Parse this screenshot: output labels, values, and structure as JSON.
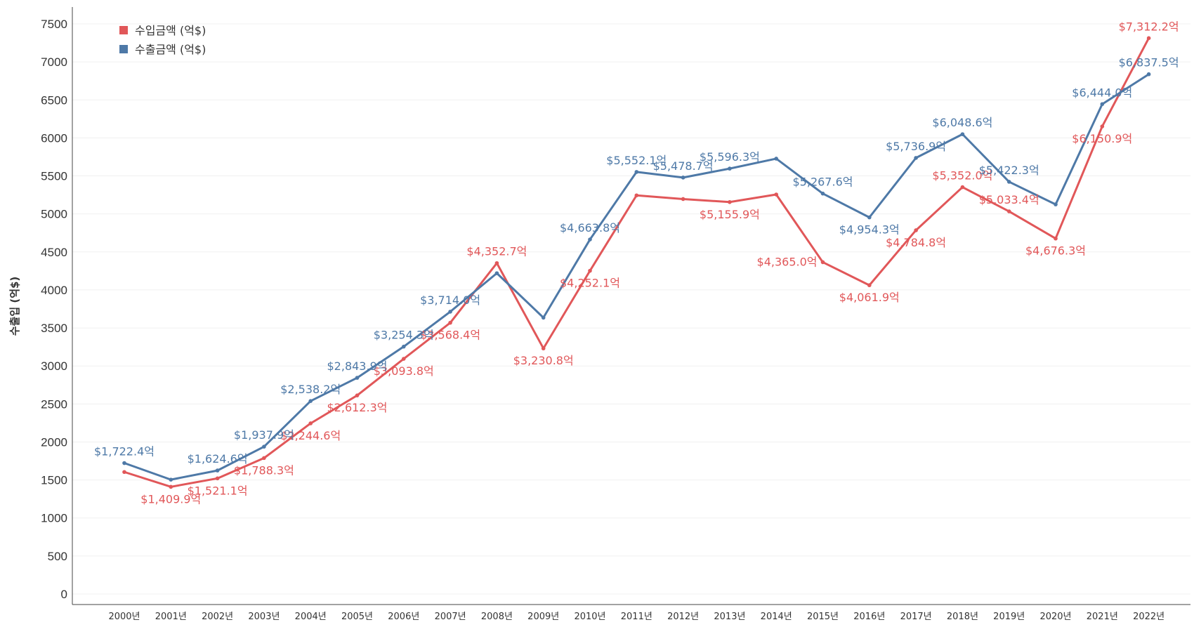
{
  "chart_data": {
    "type": "line",
    "title": "",
    "xlabel": "",
    "ylabel": "수출입 (억$)",
    "ylim": [
      0,
      7500
    ],
    "yticks": [
      0,
      500,
      1000,
      1500,
      2000,
      2500,
      3000,
      3500,
      4000,
      4500,
      5000,
      5500,
      6000,
      6500,
      7000,
      7500
    ],
    "grid": "horizontal",
    "legend_position": "top-left",
    "categories": [
      "2000년",
      "2001년",
      "2002년",
      "2003년",
      "2004년",
      "2005년",
      "2006년",
      "2007년",
      "2008년",
      "2009년",
      "2010년",
      "2011년",
      "2012년",
      "2013년",
      "2014년",
      "2015년",
      "2016년",
      "2017년",
      "2018년",
      "2019년",
      "2020년",
      "2021년",
      "2022년"
    ],
    "series": [
      {
        "name": "수입금액 (억$)",
        "color": "#e15759",
        "values": [
          1604.8,
          1409.9,
          1521.1,
          1788.3,
          2244.6,
          2612.3,
          3093.8,
          3568.4,
          4352.7,
          3230.8,
          4252.1,
          5244.0,
          5195.8,
          5155.9,
          5255.3,
          4365.0,
          4061.9,
          4784.8,
          5352.0,
          5033.4,
          4676.3,
          6150.9,
          7312.2
        ],
        "labels": [
          "",
          "$1,409.9억",
          "$1,521.1억",
          "$1,788.3억",
          "$2,244.6억",
          "$2,612.3억",
          "$3,093.8억",
          "$3,568.4억",
          "$4,352.7억",
          "$3,230.8억",
          "$4,252.1억",
          "",
          "",
          "$5,155.9억",
          "",
          "$4,365.0억",
          "$4,061.9억",
          "$4,784.8억",
          "$5,352.0억",
          "$5,033.4억",
          "$4,676.3억",
          "$6,150.9억",
          "$7,312.2억"
        ],
        "label_pos": [
          "",
          "below",
          "below",
          "below",
          "below",
          "below",
          "below",
          "below",
          "above",
          "below",
          "below",
          "",
          "",
          "below",
          "",
          "left",
          "below",
          "below",
          "above",
          "above",
          "below",
          "below",
          "above"
        ]
      },
      {
        "name": "수출금액 (억$)",
        "color": "#4e79a7",
        "values": [
          1722.4,
          1504.4,
          1624.6,
          1937.9,
          2538.2,
          2843.9,
          3254.3,
          3714.0,
          4220.0,
          3635.3,
          4663.8,
          5552.1,
          5478.7,
          5596.3,
          5726.9,
          5267.6,
          4954.3,
          5736.9,
          6048.6,
          5422.3,
          5125.4,
          6444.0,
          6837.5
        ],
        "labels": [
          "$1,722.4억",
          "",
          "$1,624.6억",
          "$1,937.9억",
          "$2,538.2억",
          "$2,843.9억",
          "$3,254.3억",
          "$3,714.0억",
          "",
          "",
          "$4,663.8억",
          "$5,552.1억",
          "$5,478.7억",
          "$5,596.3억",
          "",
          "$5,267.6억",
          "$4,954.3억",
          "$5,736.9억",
          "$6,048.6억",
          "$5,422.3억",
          "",
          "$6,444.0억",
          "$6,837.5억"
        ],
        "label_pos": [
          "above",
          "",
          "above",
          "above",
          "above",
          "above",
          "above",
          "above",
          "",
          "",
          "above",
          "above",
          "above",
          "above",
          "",
          "above",
          "below",
          "above",
          "above",
          "above",
          "",
          "above",
          "above"
        ]
      }
    ]
  }
}
